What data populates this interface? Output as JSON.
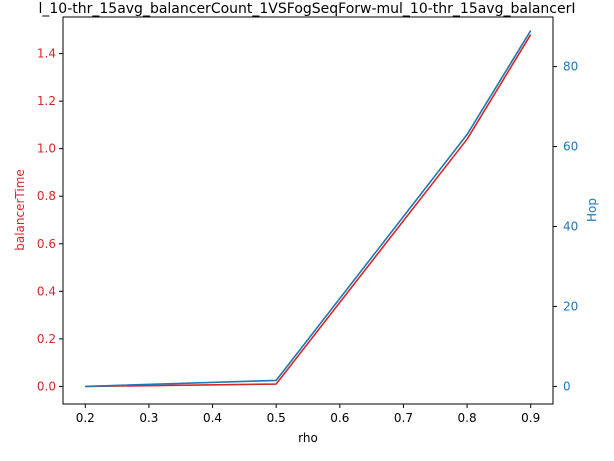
{
  "chart_data": {
    "type": "line",
    "title": "l_10-thr_15avg_balancerCount_1VSFogSeqForw-mul_10-thr_15avg_balancerI",
    "xlabel": "rho",
    "ylabel_left": "balancerTime",
    "ylabel_right": "Hop",
    "xlim": [
      0.165,
      0.935
    ],
    "ylim_left": [
      -0.074,
      1.554
    ],
    "ylim_right": [
      -4.4,
      92.4
    ],
    "x_ticks": [
      "0.2",
      "0.3",
      "0.4",
      "0.5",
      "0.6",
      "0.7",
      "0.8",
      "0.9"
    ],
    "y_ticks_left": [
      "0.0",
      "0.2",
      "0.4",
      "0.6",
      "0.8",
      "1.0",
      "1.2",
      "1.4"
    ],
    "y_ticks_right": [
      "0",
      "20",
      "40",
      "60",
      "80"
    ],
    "colors": {
      "left_axis": "#d62728",
      "right_axis": "#1f77b4"
    },
    "series": [
      {
        "axis": "left",
        "color": "#d62728",
        "x": [
          0.2,
          0.5,
          0.8,
          0.9
        ],
        "y": [
          0.0,
          0.01,
          1.04,
          1.48
        ]
      },
      {
        "axis": "right",
        "color": "#1f77b4",
        "x": [
          0.2,
          0.5,
          0.8,
          0.9
        ],
        "y": [
          0.0,
          1.5,
          63,
          89
        ]
      }
    ]
  }
}
